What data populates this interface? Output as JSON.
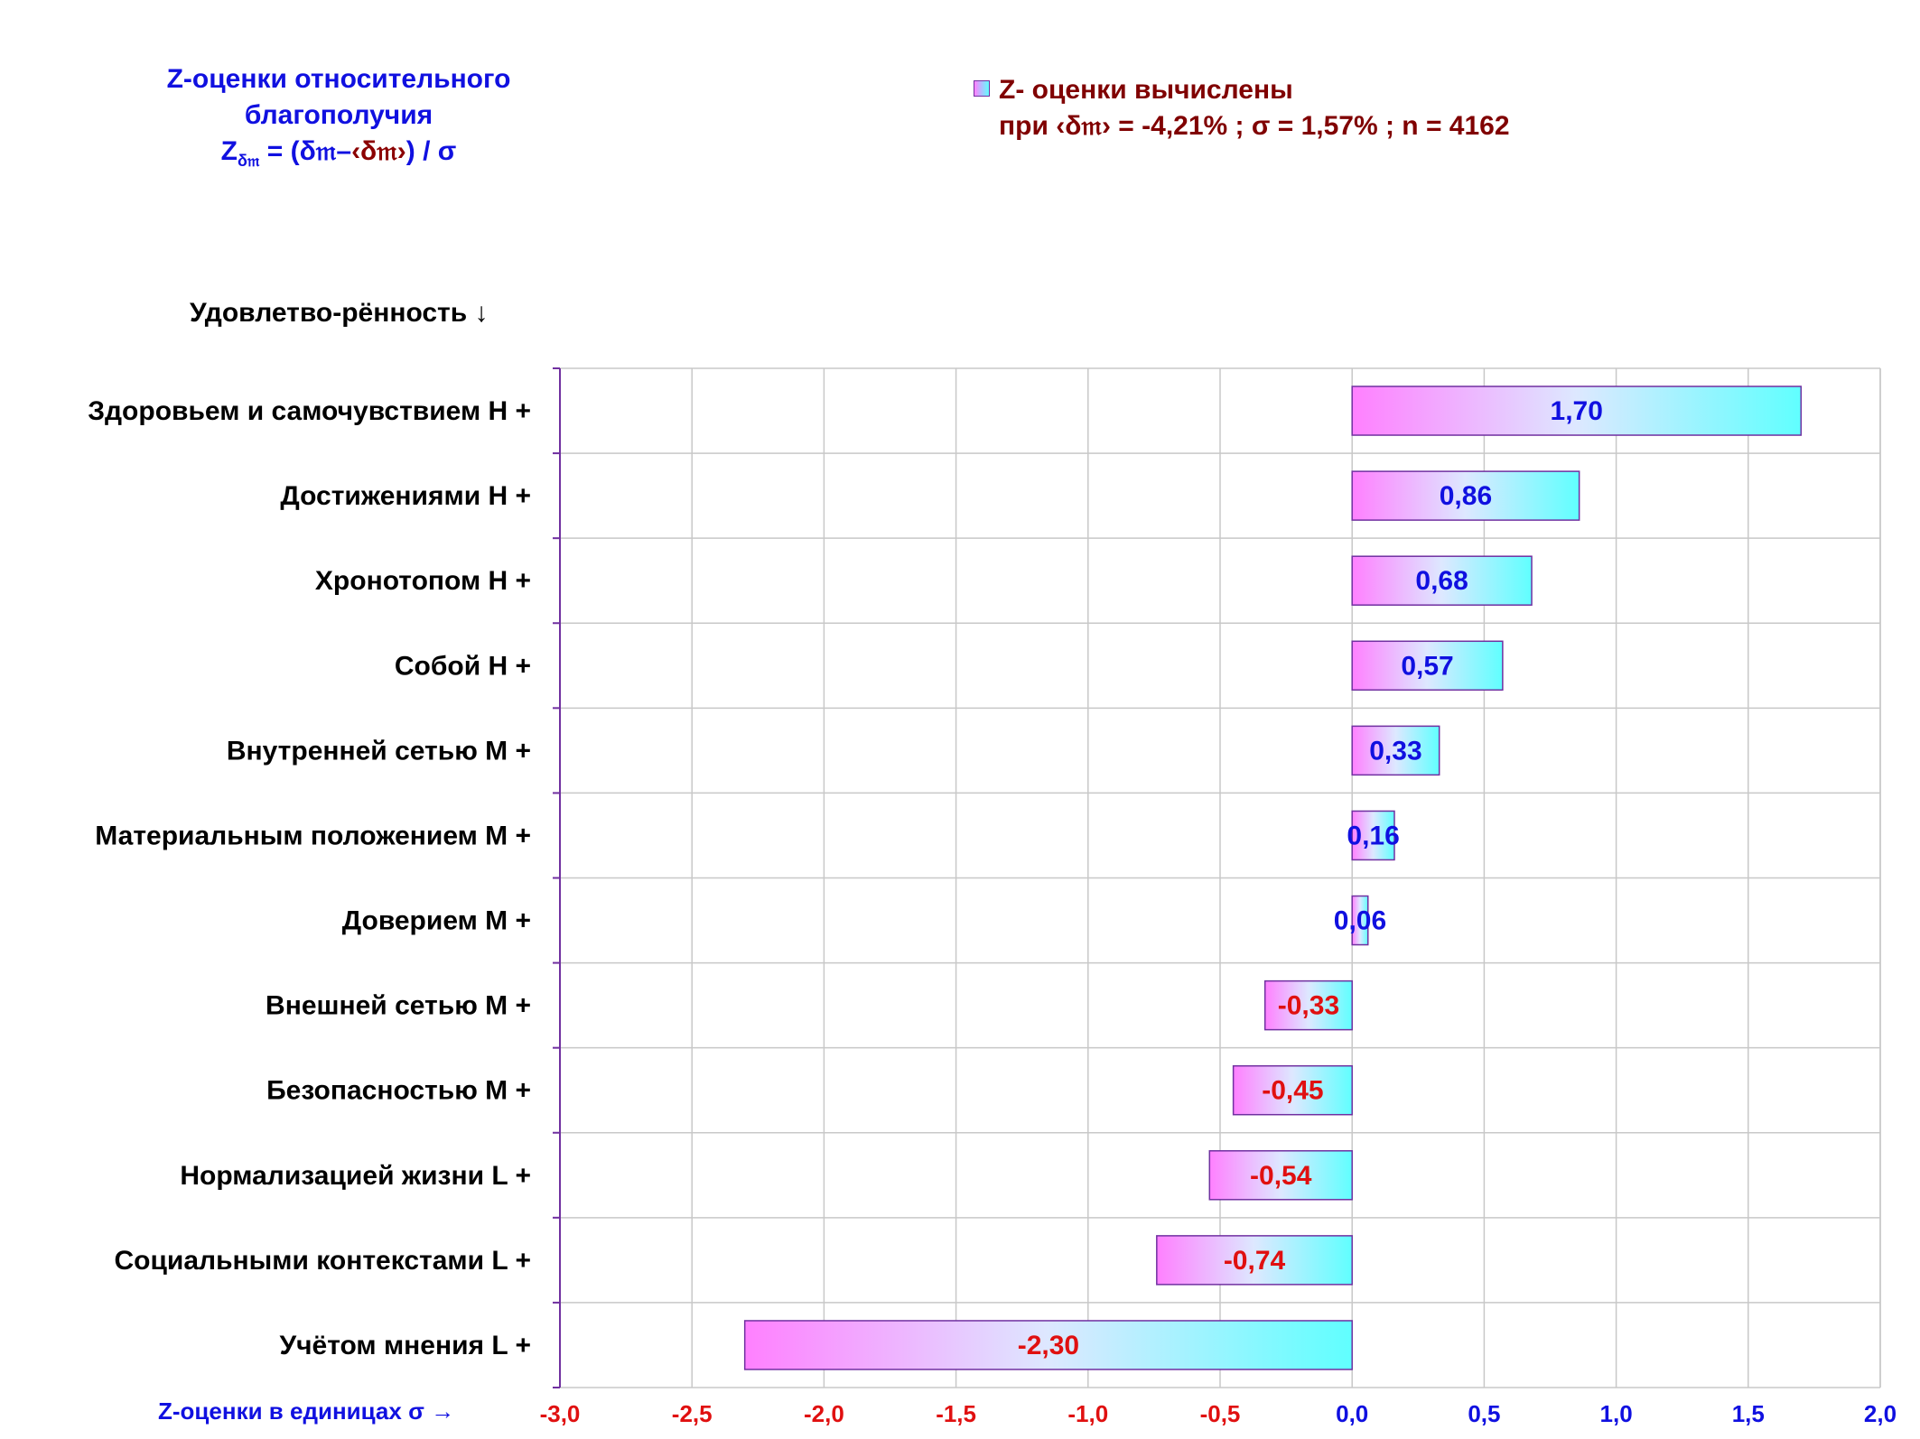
{
  "title": {
    "line1": "Z-оценки  относительного",
    "line2": "благополучия",
    "formula_z": "Z",
    "formula_sub": "δ𝔪",
    "formula_rest": " = (δ𝔪–",
    "formula_mean": "‹δ𝔪›",
    "formula_end": ") / σ"
  },
  "legend": {
    "series_label": "Z- оценки вычислены",
    "params": "при ‹δ𝔪› = -4,21% ; σ = 1,57% ; n = 4162"
  },
  "category_header": "Удовлетво-рённость ↓",
  "x_axis_title": "Z-оценки в единицах σ →",
  "colors": {
    "positive_label": "#1010e0",
    "negative_label": "#e01010",
    "bar_left": "#ff80ff",
    "bar_right": "#60ffff",
    "bar_border": "#7030a0",
    "grid": "#c8c8c8",
    "axis": "#7030a0"
  },
  "chart_data": {
    "type": "bar",
    "orientation": "horizontal",
    "categories": [
      "Здоровьем и самочувствием  H +",
      "Достижениями  H +",
      "Хронотопом  H +",
      "Собой  H +",
      "Внутренней сетью  M +",
      "Материальным положением  M +",
      "Доверием  M +",
      "Внешней сетью  M +",
      "Безопасностью  M +",
      "Нормализацией жизни  L +",
      "Социальными контекстами  L +",
      "Учётом мнения  L +"
    ],
    "values": [
      1.7,
      0.86,
      0.68,
      0.57,
      0.33,
      0.16,
      0.06,
      -0.33,
      -0.45,
      -0.54,
      -0.74,
      -2.3
    ],
    "value_labels": [
      "1,70",
      "0,86",
      "0,68",
      "0,57",
      "0,33",
      "0,16",
      "0,06",
      "-0,33",
      "-0,45",
      "-0,54",
      "-0,74",
      "-2,30"
    ],
    "xlim": [
      -3.0,
      2.0
    ],
    "x_ticks": [
      -3.0,
      -2.5,
      -2.0,
      -1.5,
      -1.0,
      -0.5,
      0.0,
      0.5,
      1.0,
      1.5,
      2.0
    ],
    "x_tick_labels": [
      "-3,0",
      "-2,5",
      "-2,0",
      "-1,5",
      "-1,0",
      "-0,5",
      "0,0",
      "0,5",
      "1,0",
      "1,5",
      "2,0"
    ],
    "grid": true
  }
}
